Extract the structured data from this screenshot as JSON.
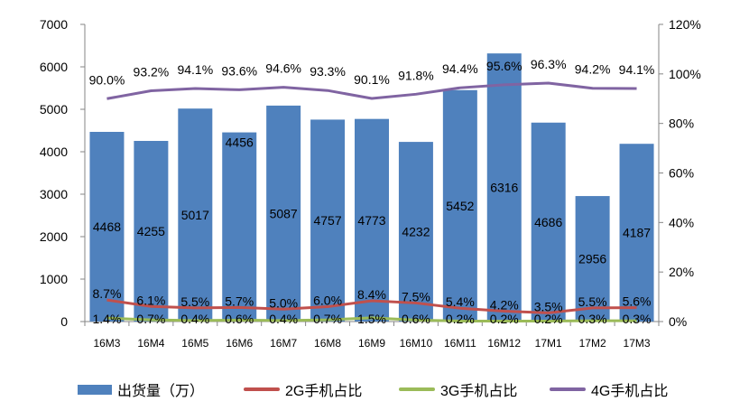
{
  "chart_data": {
    "type": "bar",
    "categories": [
      "16M3",
      "16M4",
      "16M5",
      "16M6",
      "16M7",
      "16M8",
      "16M9",
      "16M10",
      "16M11",
      "16M12",
      "17M1",
      "17M2",
      "17M3"
    ],
    "series": [
      {
        "name": "出货量（万）",
        "type": "bar",
        "axis": "left",
        "values": [
          4468,
          4255,
          5017,
          4456,
          5087,
          4757,
          4773,
          4232,
          5452,
          6316,
          4686,
          2956,
          4187
        ],
        "labels": [
          "4468",
          "4255",
          "5017",
          "4456",
          "5087",
          "4757",
          "4773",
          "4232",
          "5452",
          "6316",
          "4686",
          "2956",
          "4187"
        ]
      },
      {
        "name": "2G手机占比",
        "type": "line",
        "axis": "right",
        "values": [
          8.7,
          6.1,
          5.5,
          5.7,
          5.0,
          6.0,
          8.4,
          7.5,
          5.4,
          4.2,
          3.5,
          5.5,
          5.6
        ],
        "labels": [
          "8.7%",
          "6.1%",
          "5.5%",
          "5.7%",
          "5.0%",
          "6.0%",
          "8.4%",
          "7.5%",
          "5.4%",
          "4.2%",
          "3.5%",
          "5.5%",
          "5.6%"
        ]
      },
      {
        "name": "3G手机占比",
        "type": "line",
        "axis": "right",
        "values": [
          1.4,
          0.7,
          0.4,
          0.6,
          0.4,
          0.7,
          1.5,
          0.6,
          0.2,
          0.2,
          0.2,
          0.3,
          0.3
        ],
        "labels": [
          "1.4%",
          "0.7%",
          "0.4%",
          "0.6%",
          "0.4%",
          "0.7%",
          "1.5%",
          "0.6%",
          "0.2%",
          "0.2%",
          "0.2%",
          "0.3%",
          "0.3%"
        ]
      },
      {
        "name": "4G手机占比",
        "type": "line",
        "axis": "right",
        "values": [
          90.0,
          93.2,
          94.1,
          93.6,
          94.6,
          93.3,
          90.1,
          91.8,
          94.4,
          95.6,
          96.3,
          94.2,
          94.1
        ],
        "labels": [
          "90.0%",
          "93.2%",
          "94.1%",
          "93.6%",
          "94.6%",
          "93.3%",
          "90.1%",
          "91.8%",
          "94.4%",
          "95.6%",
          "96.3%",
          "94.2%",
          "94.1%"
        ]
      }
    ],
    "y_left": {
      "min": 0,
      "max": 7000,
      "step": 1000,
      "ticks": [
        "0",
        "1000",
        "2000",
        "3000",
        "4000",
        "5000",
        "6000",
        "7000"
      ]
    },
    "y_right": {
      "min": 0,
      "max": 120,
      "step": 20,
      "ticks": [
        "0%",
        "20%",
        "40%",
        "60%",
        "80%",
        "100%",
        "120%"
      ]
    },
    "legend_position": "bottom",
    "colors": {
      "bar": "#4f81bd",
      "2g": "#c0504d",
      "3g": "#9bbb59",
      "4g": "#8064a2"
    }
  }
}
